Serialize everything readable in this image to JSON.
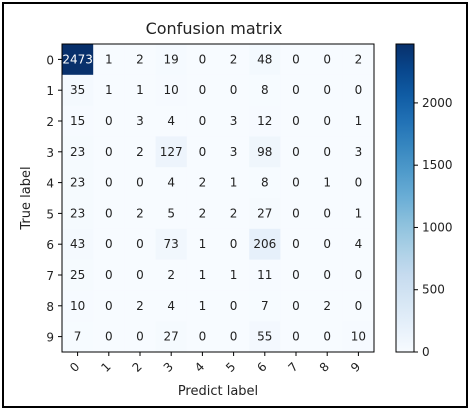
{
  "chart_data": {
    "type": "heatmap",
    "title": "Confusion matrix",
    "xlabel": "Predict label",
    "ylabel": "True label",
    "x_categories": [
      "0",
      "1",
      "2",
      "3",
      "4",
      "5",
      "6",
      "7",
      "8",
      "9"
    ],
    "y_categories": [
      "0",
      "1",
      "2",
      "3",
      "4",
      "5",
      "6",
      "7",
      "8",
      "9"
    ],
    "values": [
      [
        2473,
        1,
        2,
        19,
        0,
        2,
        48,
        0,
        0,
        2
      ],
      [
        35,
        1,
        1,
        10,
        0,
        0,
        8,
        0,
        0,
        0
      ],
      [
        15,
        0,
        3,
        4,
        0,
        3,
        12,
        0,
        0,
        1
      ],
      [
        23,
        0,
        2,
        127,
        0,
        3,
        98,
        0,
        0,
        3
      ],
      [
        23,
        0,
        0,
        4,
        2,
        1,
        8,
        0,
        1,
        0
      ],
      [
        23,
        0,
        2,
        5,
        2,
        2,
        27,
        0,
        0,
        1
      ],
      [
        43,
        0,
        0,
        73,
        1,
        0,
        206,
        0,
        0,
        4
      ],
      [
        25,
        0,
        0,
        2,
        1,
        1,
        11,
        0,
        0,
        0
      ],
      [
        10,
        0,
        2,
        4,
        1,
        0,
        7,
        0,
        2,
        0
      ],
      [
        7,
        0,
        0,
        27,
        0,
        0,
        55,
        0,
        0,
        10
      ]
    ],
    "color_min": 0,
    "color_max": 2473,
    "colorbar_ticks": [
      0,
      500,
      1000,
      1500,
      2000
    ],
    "colormap": [
      "#f7fbff",
      "#deebf7",
      "#c6dbef",
      "#9ecae1",
      "#6baed6",
      "#4292c6",
      "#2171b5",
      "#08519c",
      "#08306b"
    ]
  }
}
